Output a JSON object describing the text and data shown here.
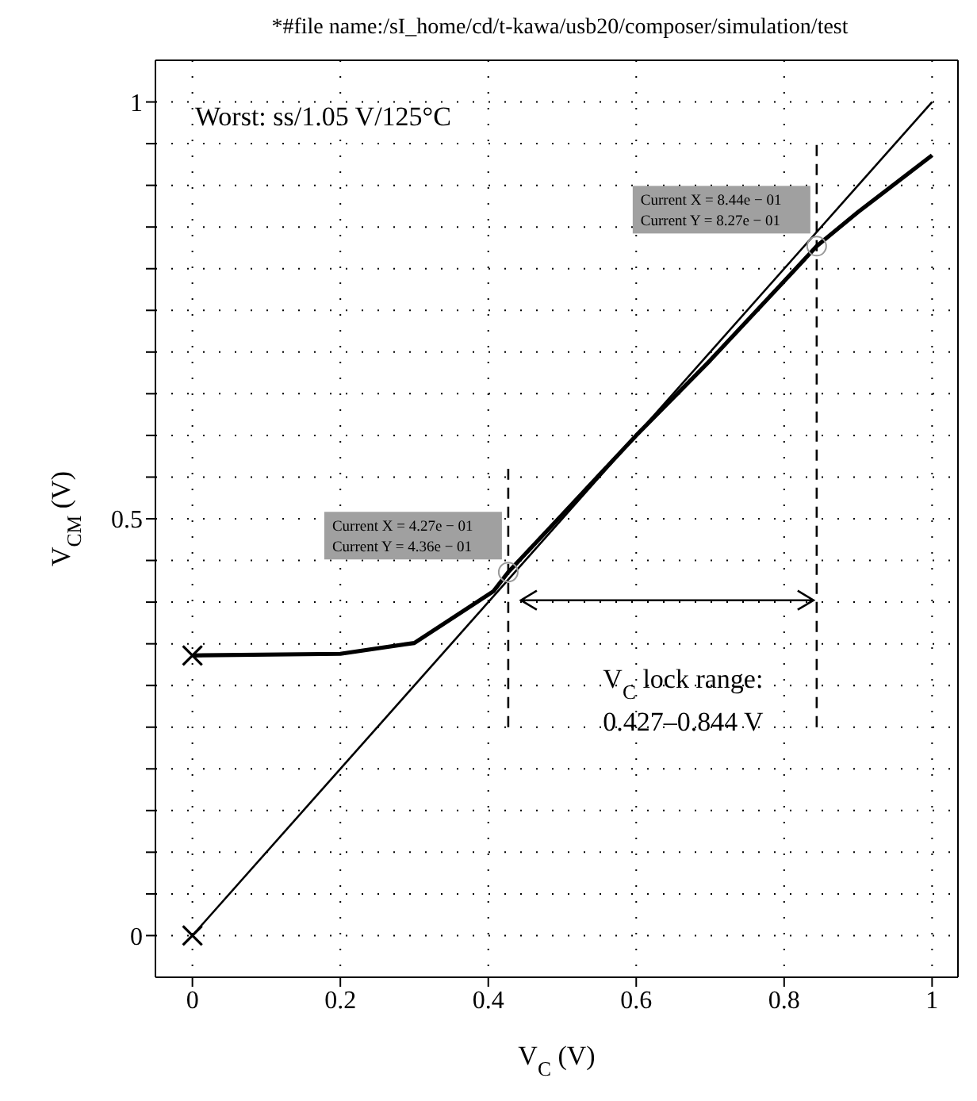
{
  "chart_data": {
    "type": "line",
    "title": "*#file name:/sI_home/cd/t-kawa/usb20/composer/simulation/test",
    "xlabel": "V$_{C}$ (V)",
    "ylabel": "V$_{CM}$ (V)",
    "xlim": [
      -0.05,
      1.035
    ],
    "ylim": [
      -0.05,
      1.05
    ],
    "xticks": [
      0,
      0.2,
      0.4,
      0.6,
      0.8,
      1
    ],
    "yticks": [
      0,
      {
        "value": 0.05,
        "label": null
      },
      {
        "value": 0.1,
        "label": null
      },
      {
        "value": 0.15,
        "label": null
      },
      {
        "value": 0.2,
        "label": null
      },
      {
        "value": 0.25,
        "label": null
      },
      {
        "value": 0.3,
        "label": null
      },
      {
        "value": 0.35,
        "label": null
      },
      {
        "value": 0.4,
        "label": null
      },
      {
        "value": 0.45,
        "label": null
      },
      0.5,
      {
        "value": 0.55,
        "label": null
      },
      {
        "value": 0.6,
        "label": null
      },
      {
        "value": 0.65,
        "label": null
      },
      {
        "value": 0.7,
        "label": null
      },
      {
        "value": 0.75,
        "label": null
      },
      {
        "value": 0.8,
        "label": null
      },
      {
        "value": 0.85,
        "label": null
      },
      {
        "value": 0.9,
        "label": null
      },
      {
        "value": 0.95,
        "label": null
      },
      1
    ],
    "grid": true,
    "line_style": "solid",
    "series": [
      {
        "type": "line",
        "color": "#000000",
        "x": [
          0,
          1
        ],
        "values": [
          0,
          1
        ]
      },
      {
        "type": "line",
        "color": "#000000",
        "x": [
          0,
          0.2,
          0.3,
          0.407,
          0.427,
          0.5,
          0.6,
          0.7,
          0.8,
          0.844,
          0.9,
          1
        ],
        "values": [
          0.336,
          0.338,
          0.351,
          0.413,
          0.436,
          0.505,
          0.6,
          0.69,
          0.785,
          0.827,
          0.868,
          0.936
        ]
      },
      {
        "type": "line",
        "color": "#000000",
        "line_style": "dashed",
        "x": [
          0.427,
          0.427
        ],
        "values": [
          0.25,
          0.56
        ]
      },
      {
        "type": "line",
        "color": "#000000",
        "line_style": "dashed",
        "x": [
          0.844,
          0.844
        ],
        "values": [
          0.25,
          0.95
        ]
      },
      {
        "type": "scatter",
        "color": "#000000",
        "marker": "cross",
        "x": [
          0,
          0
        ],
        "values": [
          0,
          0.336
        ]
      }
    ],
    "annotations": [
      "Worst: ss/1.05 V/125°C",
      "Current X = 4.27e − 01",
      "Current Y = 4.36e − 01",
      "Current X = 8.44e − 01",
      "Current Y = 8.27e − 01",
      "V$_{C}$ lock range:",
      "0.427–0.844 V"
    ]
  }
}
